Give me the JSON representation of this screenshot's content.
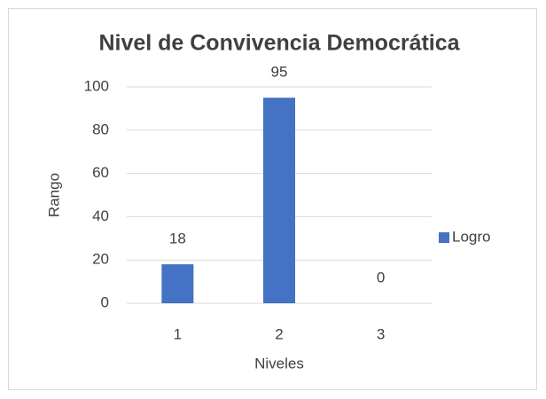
{
  "chart_data": {
    "type": "bar",
    "title": "Nivel de Convivencia Democrática",
    "x_label": "Niveles",
    "y_label": "Rango",
    "categories": [
      "1",
      "2",
      "3"
    ],
    "series": [
      {
        "name": "Logro",
        "color": "#4472c4",
        "values": [
          18,
          95,
          0
        ]
      }
    ],
    "ylim": [
      0,
      100
    ],
    "yticks": [
      0,
      20,
      40,
      60,
      80,
      100
    ],
    "grid": true,
    "legend": "right"
  }
}
